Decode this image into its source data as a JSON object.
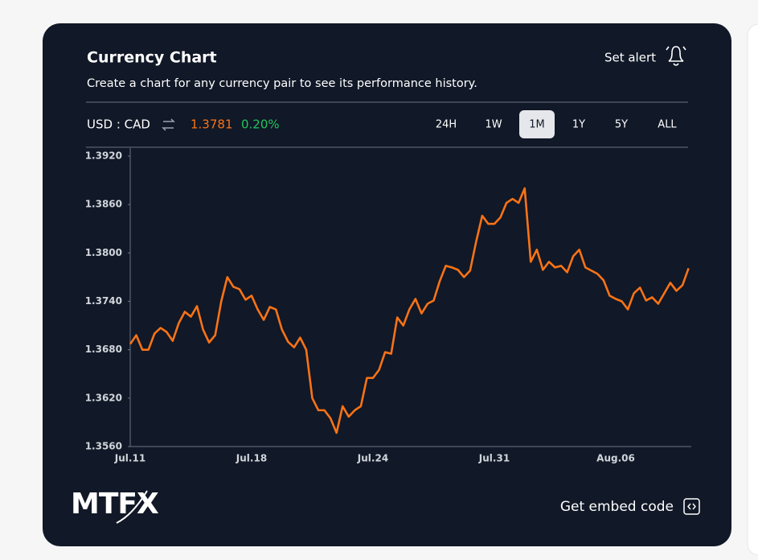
{
  "header": {
    "title": "Currency Chart",
    "subtitle": "Create a chart for any currency pair to see its performance history.",
    "alert": "Set alert"
  },
  "pair": {
    "name": "USD : CAD",
    "rate": "1.3781",
    "change": "0.20%"
  },
  "ranges": [
    "24H",
    "1W",
    "1M",
    "1Y",
    "5Y",
    "ALL"
  ],
  "active_range": "1M",
  "chart_data": {
    "type": "line",
    "color": "#f97316",
    "grid": false,
    "categories": [
      "Jul.11",
      null,
      null,
      null,
      null,
      null,
      null,
      null,
      null,
      null,
      null,
      null,
      null,
      null,
      null,
      null,
      null,
      null,
      null,
      null,
      "Jul.18",
      null,
      null,
      null,
      null,
      null,
      null,
      null,
      null,
      null,
      null,
      null,
      null,
      null,
      null,
      null,
      null,
      null,
      null,
      null,
      "Jul.24",
      null,
      null,
      null,
      null,
      null,
      null,
      null,
      null,
      null,
      null,
      null,
      null,
      null,
      null,
      null,
      null,
      null,
      null,
      null,
      "Jul.31",
      null,
      null,
      null,
      null,
      null,
      null,
      null,
      null,
      null,
      null,
      null,
      null,
      null,
      null,
      null,
      null,
      null,
      null,
      null,
      "Aug.06",
      null,
      null,
      null,
      null,
      null,
      null,
      null,
      null,
      null,
      null,
      null,
      null
    ],
    "values": [
      1.3687,
      1.3698,
      1.368,
      1.368,
      1.37,
      1.3707,
      1.3702,
      1.3691,
      1.3713,
      1.3727,
      1.3721,
      1.3734,
      1.3705,
      1.3689,
      1.3698,
      1.374,
      1.377,
      1.3758,
      1.3755,
      1.3742,
      1.3747,
      1.373,
      1.3717,
      1.3733,
      1.373,
      1.3705,
      1.369,
      1.3683,
      1.3695,
      1.368,
      1.362,
      1.3605,
      1.3605,
      1.3595,
      1.3577,
      1.361,
      1.3597,
      1.3605,
      1.361,
      1.3645,
      1.3645,
      1.3655,
      1.3677,
      1.3675,
      1.372,
      1.371,
      1.373,
      1.3743,
      1.3725,
      1.3737,
      1.3741,
      1.3765,
      1.3784,
      1.3782,
      1.3779,
      1.377,
      1.3778,
      1.3814,
      1.3846,
      1.3836,
      1.3836,
      1.3844,
      1.3862,
      1.3867,
      1.3862,
      1.388,
      1.3789,
      1.3804,
      1.3779,
      1.3789,
      1.3782,
      1.3784,
      1.3776,
      1.3796,
      1.3804,
      1.3782,
      1.3778,
      1.3774,
      1.3766,
      1.3747,
      1.3743,
      1.374,
      1.373,
      1.375,
      1.3757,
      1.3741,
      1.3745,
      1.3737,
      1.375,
      1.3763,
      1.3753,
      1.376,
      1.3781
    ],
    "ylim": [
      1.356,
      1.392
    ],
    "yticks": [
      {
        "value": 1.356,
        "label": "1.3560"
      },
      {
        "value": 1.362,
        "label": "1.3620"
      },
      {
        "value": 1.368,
        "label": "1.3680"
      },
      {
        "value": 1.374,
        "label": "1.3740"
      },
      {
        "value": 1.38,
        "label": "1.3800"
      },
      {
        "value": 1.386,
        "label": "1.3860"
      },
      {
        "value": 1.392,
        "label": "1.3920"
      }
    ]
  },
  "footer": {
    "logo": "MTFX",
    "embed": "Get embed code"
  }
}
